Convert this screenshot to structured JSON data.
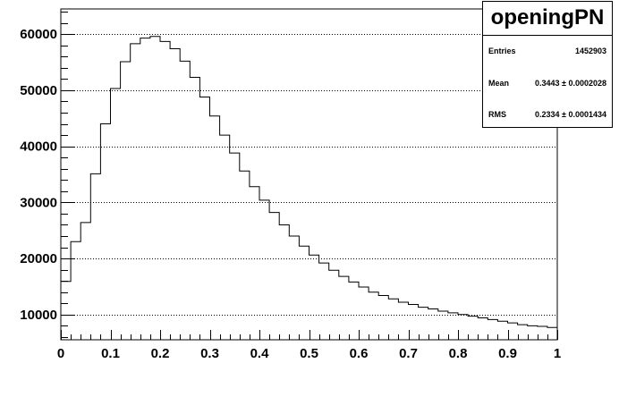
{
  "chart_data": {
    "type": "histogram",
    "title": "openingPN",
    "xlim": [
      0,
      1
    ],
    "ylim": [
      5500,
      64500
    ],
    "x_ticks": [
      0,
      0.1,
      0.2,
      0.3,
      0.4,
      0.5,
      0.6,
      0.7,
      0.8,
      0.9,
      1
    ],
    "x_tick_labels": [
      "0",
      "0.1",
      "0.2",
      "0.3",
      "0.4",
      "0.5",
      "0.6",
      "0.7",
      "0.8",
      "0.9",
      "1"
    ],
    "y_ticks": [
      10000,
      20000,
      30000,
      40000,
      50000,
      60000
    ],
    "y_tick_labels": [
      "10000",
      "20000",
      "30000",
      "40000",
      "50000",
      "60000"
    ],
    "grid": "horizontal-dotted",
    "bin_width": 0.02,
    "bin_edges_start": 0,
    "values": [
      15900,
      23000,
      26400,
      35100,
      44000,
      50300,
      55100,
      58300,
      59300,
      59600,
      58700,
      57400,
      55200,
      52300,
      48800,
      45400,
      42000,
      38800,
      35600,
      32800,
      30400,
      28200,
      26000,
      24000,
      22200,
      20600,
      19200,
      17900,
      16800,
      15800,
      14900,
      14000,
      13400,
      12800,
      12200,
      11800,
      11300,
      11000,
      10600,
      10300,
      10000,
      9700,
      9400,
      9100,
      8800,
      8500,
      8200,
      8000,
      7900,
      7700
    ]
  },
  "stats_box": {
    "title": "openingPN",
    "entries_label": "Entries",
    "entries_value": "1452903",
    "mean_label": "Mean",
    "mean_value": "0.3443 ± 0.0002028",
    "rms_label": "RMS",
    "rms_value": "0.2334 ± 0.0001434"
  }
}
